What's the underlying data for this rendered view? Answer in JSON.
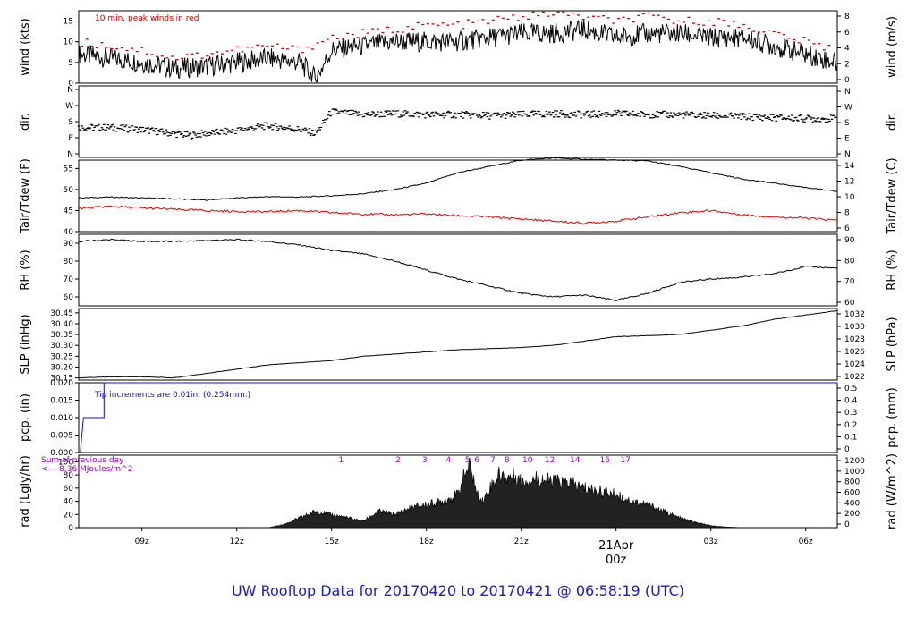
{
  "page": {
    "title": "UW Rooftop Data for 20170420  to  20170421 @ 06:58:19  (UTC)",
    "colors": {
      "title": "#1a1ad0",
      "peak": "#cc0000",
      "dew": "#e00000",
      "rain": "#1010c8",
      "solar_text": "#9900cc",
      "date_marker": "#cc0000"
    }
  },
  "chart_data": [
    {
      "type": "line",
      "id": "wind",
      "ylabel_left": "wind (kts)",
      "ylabel_right": "wind (m/s)",
      "annotation": "10 min. peak winds in red",
      "ylim": [
        0,
        17.5
      ],
      "yticks_left": [
        "0",
        "5",
        "10",
        "15"
      ],
      "yticks_right": [
        "0",
        "2",
        "4",
        "6",
        "8"
      ],
      "time_range_hours": [
        7,
        31
      ],
      "series": [
        {
          "role": "wind",
          "color": "#000000",
          "x": [
            7,
            8,
            9,
            10,
            11,
            12,
            13,
            14,
            14.5,
            15,
            16,
            17,
            18,
            19,
            20,
            21,
            22,
            23,
            24,
            25,
            26,
            27,
            28,
            29,
            30,
            31
          ],
          "y": [
            7,
            6,
            5,
            3.5,
            4,
            5,
            6,
            5,
            1,
            8,
            9,
            10,
            10,
            10,
            11,
            12,
            12,
            13,
            11,
            12,
            12,
            11,
            11,
            9,
            7,
            5
          ]
        },
        {
          "role": "peak",
          "color": "#cc0000",
          "x": [
            7,
            8,
            9,
            10,
            11,
            12,
            13,
            14,
            15,
            16,
            17,
            18,
            19,
            20,
            21,
            22,
            23,
            24,
            25,
            26,
            27,
            28,
            29,
            30,
            31
          ],
          "y": [
            10,
            9,
            8,
            6,
            7,
            8,
            9,
            8,
            11,
            12,
            13,
            14,
            14,
            15,
            16,
            17,
            16,
            15,
            16,
            15,
            15,
            14,
            12,
            10,
            8
          ]
        }
      ]
    },
    {
      "type": "scatter",
      "id": "dir",
      "ylabel_left": "dir.",
      "ylabel_right": "dir.",
      "yticks_left": [
        "N",
        "E",
        "S",
        "W",
        "N"
      ],
      "yticks_right": [
        "N",
        "E",
        "S",
        "W",
        "N"
      ],
      "ylim": [
        0,
        360
      ],
      "time_range_hours": [
        7,
        31
      ],
      "series": [
        {
          "role": "direction",
          "color": "#000000",
          "x": [
            7,
            8,
            9,
            10,
            10.5,
            11,
            12,
            13,
            14,
            14.5,
            15,
            16,
            17,
            18,
            19,
            20,
            21,
            22,
            23,
            24,
            25,
            26,
            27,
            28,
            29,
            30,
            31
          ],
          "y": [
            150,
            150,
            140,
            120,
            110,
            120,
            135,
            160,
            140,
            120,
            230,
            215,
            220,
            215,
            215,
            210,
            215,
            220,
            215,
            220,
            215,
            215,
            210,
            205,
            200,
            195,
            195
          ]
        }
      ]
    },
    {
      "type": "line",
      "id": "temp",
      "ylabel_left": "Tair/Tdew (F)",
      "ylabel_right": "Tair/Tdew (C)",
      "ylim": [
        40,
        57
      ],
      "yticks_left": [
        "40",
        "45",
        "50",
        "55"
      ],
      "yticks_right": [
        "6",
        "8",
        "10",
        "12",
        "14"
      ],
      "time_range_hours": [
        7,
        31
      ],
      "series": [
        {
          "role": "air",
          "color": "#000000",
          "x": [
            7,
            8,
            9,
            10,
            11,
            12,
            13,
            14,
            15,
            16,
            17,
            18,
            19,
            20,
            21,
            22,
            23,
            24,
            25,
            26,
            27,
            28,
            29,
            30,
            31
          ],
          "y": [
            48,
            48.2,
            48,
            47.8,
            47.5,
            48,
            48.3,
            48.2,
            48.5,
            49,
            50,
            51.5,
            54,
            55.5,
            57,
            57.5,
            57.2,
            57,
            56.8,
            55.5,
            54,
            52.5,
            51.5,
            50.5,
            49.5
          ]
        },
        {
          "role": "dew",
          "color": "#e00000",
          "x": [
            7,
            8,
            9,
            10,
            11,
            12,
            13,
            14,
            15,
            16,
            17,
            18,
            19,
            20,
            21,
            22,
            23,
            24,
            25,
            26,
            27,
            28,
            29,
            30,
            31
          ],
          "y": [
            45.5,
            46,
            45.6,
            45.3,
            45,
            44.8,
            44.7,
            45,
            44.5,
            44.2,
            44,
            44.2,
            43.8,
            43.5,
            43,
            42.5,
            42,
            42.5,
            43.5,
            44.5,
            45,
            44,
            43.5,
            43.2,
            42.7
          ]
        }
      ]
    },
    {
      "type": "line",
      "id": "rh",
      "ylabel_left": "RH (%)",
      "ylabel_right": "RH (%)",
      "ylim": [
        55,
        95
      ],
      "yticks_left": [
        "60",
        "70",
        "80",
        "90"
      ],
      "yticks_right": [
        "60",
        "70",
        "80",
        "90"
      ],
      "time_range_hours": [
        7,
        31
      ],
      "series": [
        {
          "role": "rh",
          "color": "#000000",
          "x": [
            7,
            8,
            9,
            10,
            11,
            12,
            13,
            14,
            15,
            16,
            17,
            18,
            19,
            20,
            21,
            22,
            23,
            24,
            25,
            26,
            27,
            28,
            29,
            30,
            31
          ],
          "y": [
            91,
            92,
            91,
            91,
            91.5,
            92,
            91,
            89,
            86,
            84,
            80,
            75,
            70,
            66,
            62,
            60,
            61,
            58,
            62,
            68,
            70,
            71,
            73,
            77,
            76
          ]
        }
      ]
    },
    {
      "type": "line",
      "id": "slp",
      "ylabel_left": "SLP (inHg)",
      "ylabel_right": "SLP (hPa)",
      "ylim": [
        30.14,
        30.47
      ],
      "yticks_left": [
        "30.15",
        "30.20",
        "30.25",
        "30.30",
        "30.35",
        "30.40",
        "30.45"
      ],
      "yticks_right": [
        "1022",
        "1024",
        "1026",
        "1028",
        "1030",
        "1032"
      ],
      "time_range_hours": [
        7,
        31
      ],
      "series": [
        {
          "role": "pressure",
          "color": "#000000",
          "x": [
            7,
            8,
            9,
            10,
            11,
            12,
            13,
            14,
            15,
            16,
            17,
            18,
            19,
            20,
            21,
            22,
            23,
            24,
            25,
            26,
            27,
            28,
            29,
            30,
            31
          ],
          "y": [
            30.15,
            30.155,
            30.155,
            30.15,
            30.17,
            30.19,
            30.21,
            30.22,
            30.23,
            30.25,
            30.26,
            30.27,
            30.28,
            30.285,
            30.29,
            30.3,
            30.32,
            30.34,
            30.345,
            30.35,
            30.37,
            30.39,
            30.42,
            30.44,
            30.46
          ]
        }
      ]
    },
    {
      "type": "line",
      "id": "pcp",
      "ylabel_left": "pcp. (in)",
      "ylabel_right": "pcp. (mm)",
      "annotation": "Tip increments are 0.01in. (0.254mm.)",
      "ylim": [
        0,
        0.02
      ],
      "yticks_left": [
        "0.000",
        "0.005",
        "0.010",
        "0.015",
        "0.020"
      ],
      "yticks_right": [
        "0",
        "0.1",
        "0.2",
        "0.3",
        "0.4",
        "0.5"
      ],
      "time_range_hours": [
        7,
        31
      ],
      "series": [
        {
          "role": "precip",
          "color": "#1010c8",
          "x": [
            7.05,
            7.15,
            7.15,
            7.8,
            7.8,
            31
          ],
          "y": [
            0,
            0.01,
            0.01,
            0.01,
            0.02,
            0.02
          ]
        }
      ]
    },
    {
      "type": "area",
      "id": "rad",
      "ylabel_left": "rad (Lgly/hr)",
      "ylabel_right": "rad (W/m^2)",
      "ylim": [
        0,
        110
      ],
      "yticks_left": [
        "0",
        "20",
        "40",
        "60",
        "80",
        "100"
      ],
      "yticks_right": [
        "0",
        "200",
        "400",
        "600",
        "800",
        "1000",
        "1200"
      ],
      "time_range_hours": [
        7,
        31
      ],
      "sum_text_1": "Sum of previous day",
      "sum_text_2": "<--- 8.36 MJoules/m^2",
      "hour_labels": [
        "1",
        "2",
        "3",
        "4",
        "5",
        "6",
        "7",
        "8",
        "10",
        "12",
        "14",
        "16",
        "17"
      ],
      "hour_label_x": [
        15.3,
        17.1,
        17.95,
        18.7,
        19.3,
        19.6,
        20.1,
        20.55,
        21.2,
        21.9,
        22.7,
        23.65,
        24.3
      ],
      "series": [
        {
          "role": "radiation",
          "color": "#000000",
          "x": [
            13,
            13.5,
            14,
            14.5,
            15,
            15.5,
            16,
            16.5,
            17,
            17.5,
            18,
            18.5,
            19,
            19.2,
            19.4,
            19.6,
            19.8,
            20,
            20.3,
            20.5,
            20.8,
            21,
            21.5,
            22,
            22.5,
            23,
            23.5,
            24,
            24.5,
            25,
            25.5,
            26,
            26.5,
            27,
            27.5,
            28
          ],
          "y": [
            0,
            5,
            15,
            25,
            20,
            15,
            10,
            25,
            20,
            30,
            35,
            40,
            50,
            80,
            95,
            50,
            40,
            60,
            80,
            75,
            80,
            70,
            75,
            70,
            68,
            60,
            55,
            50,
            40,
            35,
            25,
            15,
            8,
            3,
            1,
            0
          ]
        }
      ]
    }
  ],
  "xaxis": {
    "hours": [
      9,
      12,
      15,
      18,
      21,
      24,
      27,
      30
    ],
    "labels": [
      "09z",
      "12z",
      "15z",
      "18z",
      "21z",
      "00z",
      "03z",
      "06z"
    ],
    "date_label": "21Apr",
    "date_tick_label": "00z"
  }
}
